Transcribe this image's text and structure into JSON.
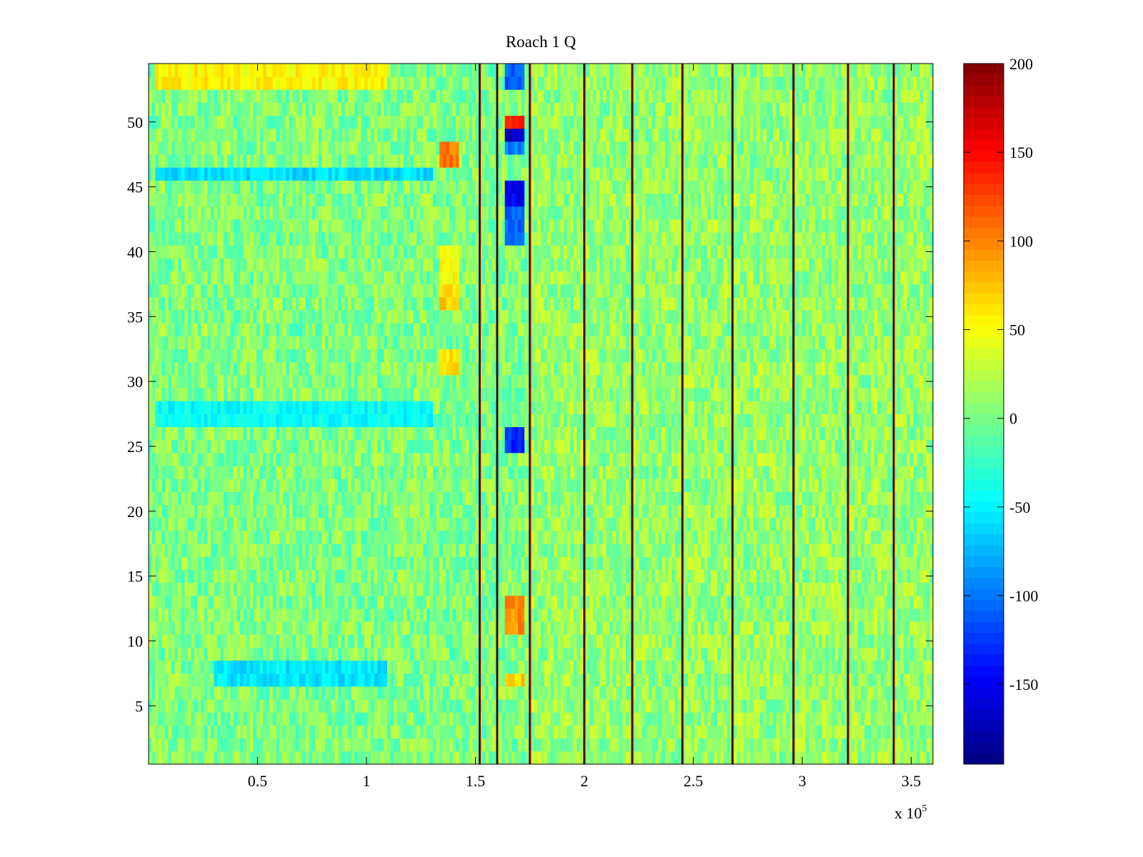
{
  "chart_data": {
    "type": "heatmap",
    "title": "Roach 1 Q",
    "xlabel": "",
    "ylabel": "",
    "x_range": [
      0,
      360000
    ],
    "y_range": [
      0.5,
      54.5
    ],
    "rows": 54,
    "colormap": "jet",
    "color_range": [
      -195,
      200
    ],
    "x_ticks": [
      0.5,
      1,
      1.5,
      2,
      2.5,
      3,
      3.5
    ],
    "x_tick_labels": [
      "0.5",
      "1",
      "1.5",
      "2",
      "2.5",
      "3",
      "3.5"
    ],
    "x_exponent_label": "x 10",
    "x_exponent_power": "5",
    "x_tick_scale": 100000,
    "y_ticks": [
      5,
      10,
      15,
      20,
      25,
      30,
      35,
      40,
      45,
      50
    ],
    "y_tick_labels": [
      "5",
      "10",
      "15",
      "20",
      "25",
      "30",
      "35",
      "40",
      "45",
      "50"
    ],
    "colorbar_ticks": [
      200,
      150,
      100,
      50,
      0,
      -50,
      -100,
      -150
    ],
    "colorbar_tick_labels": [
      "200",
      "150",
      "100",
      "50",
      "0",
      "-50",
      "-100",
      "-150"
    ],
    "vertical_lines_x": [
      152000,
      160000,
      175000,
      200000,
      222000,
      245000,
      268000,
      296000,
      321000,
      342000
    ],
    "patches": [
      {
        "x": [
          163000,
          173000
        ],
        "rows": [
          50,
          50
        ],
        "value": 140
      },
      {
        "x": [
          163000,
          173000
        ],
        "rows": [
          49,
          49
        ],
        "value": -170
      },
      {
        "x": [
          163000,
          173000
        ],
        "rows": [
          48,
          48
        ],
        "value": -100
      },
      {
        "x": [
          163000,
          173000
        ],
        "rows": [
          44,
          45
        ],
        "value": -150
      },
      {
        "x": [
          163000,
          173000
        ],
        "rows": [
          41,
          43
        ],
        "value": -110
      },
      {
        "x": [
          163000,
          173000
        ],
        "rows": [
          53,
          54
        ],
        "value": -110
      },
      {
        "x": [
          163000,
          173000
        ],
        "rows": [
          25,
          26
        ],
        "value": -130
      },
      {
        "x": [
          163000,
          173000
        ],
        "rows": [
          11,
          13
        ],
        "value": 95
      },
      {
        "x": [
          163000,
          173000
        ],
        "rows": [
          7,
          7
        ],
        "value": 70
      },
      {
        "x": [
          133000,
          142000
        ],
        "rows": [
          47,
          48
        ],
        "value": 105
      },
      {
        "x": [
          133000,
          142000
        ],
        "rows": [
          36,
          37
        ],
        "value": 70
      },
      {
        "x": [
          133000,
          142000
        ],
        "rows": [
          31,
          32
        ],
        "value": 65
      },
      {
        "x": [
          133000,
          142000
        ],
        "rows": [
          38,
          40
        ],
        "value": 50
      },
      {
        "x": [
          3000,
          110000
        ],
        "rows": [
          53,
          54
        ],
        "value": 55
      },
      {
        "x": [
          3000,
          130000
        ],
        "rows": [
          46,
          46
        ],
        "value": -60
      },
      {
        "x": [
          3000,
          130000
        ],
        "rows": [
          27,
          28
        ],
        "value": -45
      },
      {
        "x": [
          30000,
          110000
        ],
        "rows": [
          7,
          8
        ],
        "value": -55
      }
    ]
  }
}
